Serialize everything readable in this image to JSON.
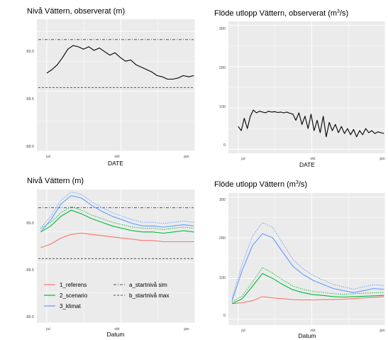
{
  "colors": {
    "panel_bg": "#ebebeb",
    "grid": "#ffffff",
    "observed": "#000000",
    "referens": "#f8766d",
    "scenario": "#00ba38",
    "klimat": "#619cff",
    "ref_line": "#555555"
  },
  "chart_data": [
    {
      "type": "line",
      "title": "Nivå Vättern, observerat (m)",
      "xlabel": "DATE",
      "ylabel": "",
      "x_ticks": [
        "jul",
        "okt",
        "jan"
      ],
      "y_ticks": [
        "88.0",
        "88.5",
        "89.0"
      ],
      "xlim": [
        -0.4,
        6.0
      ],
      "ylim": [
        88.0,
        89.1
      ],
      "grid": true,
      "series": [
        {
          "values": [
            88.65,
            88.68,
            88.72,
            88.78,
            88.85,
            88.88,
            88.87,
            88.85,
            88.87,
            88.84,
            88.86,
            88.83,
            88.8,
            88.82,
            88.78,
            88.75,
            88.76,
            88.72,
            88.7,
            88.68,
            88.66,
            88.63,
            88.62,
            88.6,
            88.6,
            88.61,
            88.63,
            88.62,
            88.63
          ]
        }
      ],
      "hlines": [
        {
          "y": 88.93,
          "style": "dotdash"
        },
        {
          "y": 88.53,
          "style": "dashed"
        }
      ]
    },
    {
      "type": "line",
      "title_main": "Flöde utlopp Vättern, observerat (m",
      "title_sup": "3",
      "title_end": "/s)",
      "xlabel": "DATE",
      "ylabel": "",
      "x_ticks": [
        "jul",
        "okt",
        "jan"
      ],
      "y_ticks": [
        "0",
        "100",
        "200",
        "300"
      ],
      "xlim": [
        -0.4,
        6.0
      ],
      "ylim": [
        -10,
        310
      ],
      "grid": true,
      "series": [
        {
          "values": [
            55,
            45,
            75,
            50,
            80,
            95,
            88,
            92,
            90,
            88,
            92,
            90,
            91,
            89,
            90,
            88,
            90,
            87,
            85,
            70,
            88,
            60,
            80,
            50,
            85,
            45,
            70,
            40,
            80,
            30,
            65,
            45,
            60,
            40,
            55,
            38,
            50,
            35,
            48,
            30,
            45,
            35,
            50,
            40,
            45,
            38,
            42,
            40,
            38
          ]
        }
      ]
    },
    {
      "type": "line",
      "title": "Nivå Vättern (m)",
      "xlabel": "Datum",
      "ylabel": "",
      "x_ticks": [
        "jul",
        "okt",
        "jan"
      ],
      "y_ticks": [
        "88.0",
        "88.5",
        "89.0"
      ],
      "xlim": [
        -0.4,
        6.0
      ],
      "ylim": [
        88.0,
        89.1
      ],
      "grid": true,
      "series": [
        {
          "name": "1_referens",
          "color": "#f8766d",
          "values": [
            88.62,
            88.65,
            88.7,
            88.73,
            88.74,
            88.73,
            88.72,
            88.71,
            88.7,
            88.69,
            88.68,
            88.68,
            88.67,
            88.67,
            88.67,
            88.67
          ]
        },
        {
          "name": "2_scenario",
          "color": "#00ba38",
          "values": [
            88.75,
            88.8,
            88.88,
            88.93,
            88.9,
            88.86,
            88.83,
            88.8,
            88.78,
            88.76,
            88.75,
            88.75,
            88.74,
            88.75,
            88.76,
            88.75
          ]
        },
        {
          "name": "3_klimat",
          "color": "#619cff",
          "values": [
            88.75,
            88.85,
            88.98,
            89.05,
            89.03,
            88.97,
            88.92,
            88.88,
            88.85,
            88.82,
            88.8,
            88.8,
            88.79,
            88.8,
            88.81,
            88.8
          ]
        }
      ],
      "hlines": [
        {
          "y": 88.95,
          "style": "dotdash",
          "name": "a_startnivå sim"
        },
        {
          "y": 88.53,
          "style": "dashed",
          "name": "b_startnivå max"
        }
      ]
    },
    {
      "type": "line",
      "title_main": "Flöde utlopp Vättern (m",
      "title_sup": "3",
      "title_end": "/s)",
      "xlabel": "Datum",
      "ylabel": "",
      "x_ticks": [
        "jul",
        "okt",
        "jan"
      ],
      "y_ticks": [
        "0",
        "100",
        "200",
        "300"
      ],
      "xlim": [
        -0.4,
        6.0
      ],
      "ylim": [
        -15,
        310
      ],
      "grid": true,
      "series": [
        {
          "name": "1_referens",
          "color": "#f8766d",
          "values": [
            38,
            40,
            45,
            55,
            52,
            50,
            48,
            47,
            47,
            48,
            48,
            49,
            50,
            52,
            53,
            55
          ]
        },
        {
          "name": "2_scenario",
          "color": "#00ba38",
          "values": [
            38,
            50,
            80,
            112,
            100,
            85,
            72,
            65,
            60,
            58,
            55,
            54,
            55,
            56,
            57,
            58
          ]
        },
        {
          "name": "3_klimat",
          "color": "#619cff",
          "values": [
            45,
            120,
            180,
            210,
            200,
            165,
            130,
            110,
            95,
            85,
            75,
            70,
            65,
            70,
            75,
            73
          ]
        }
      ]
    }
  ],
  "legend": {
    "series": [
      "1_referens",
      "2_scenario",
      "3_klimat"
    ],
    "lines": [
      "a_startnivå sim",
      "b_startnivå max"
    ]
  }
}
